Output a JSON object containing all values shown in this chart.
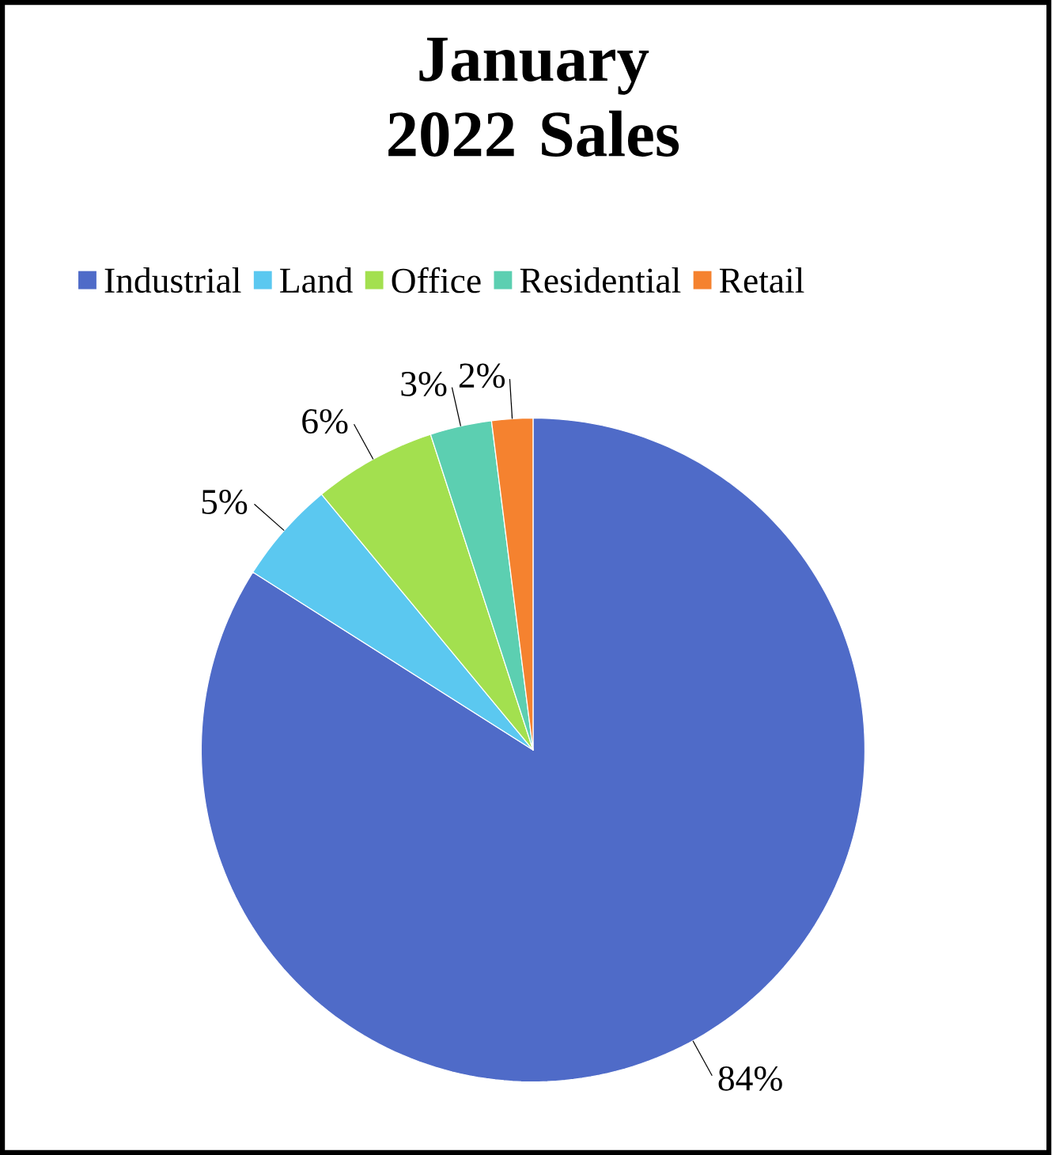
{
  "chart_data": {
    "type": "pie",
    "title": "January 2022 Sales",
    "categories": [
      "Industrial",
      "Land",
      "Office",
      "Residential",
      "Retail"
    ],
    "values": [
      84,
      5,
      6,
      3,
      2
    ],
    "colors": [
      "#4f6bc8",
      "#5bc8f0",
      "#a3e04f",
      "#5ccfb1",
      "#f5822f"
    ],
    "value_labels": [
      "84%",
      "5%",
      "6%",
      "3%",
      "2%"
    ],
    "legend": "top"
  }
}
